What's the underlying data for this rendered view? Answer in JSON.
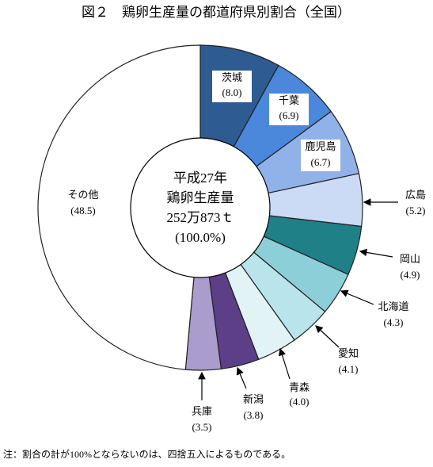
{
  "chart_data": {
    "type": "donut",
    "title": "図２　鶏卵生産量の都道府県別割合（全国）",
    "center_text": [
      "平成27年",
      "鶏卵生産量",
      "252万873ｔ",
      "(100.0%)"
    ],
    "categories": [
      "茨城",
      "千葉",
      "鹿児島",
      "広島",
      "岡山",
      "北海道",
      "愛知",
      "青森",
      "新潟",
      "兵庫",
      "その他"
    ],
    "values": [
      8.0,
      6.9,
      6.7,
      5.2,
      4.9,
      4.3,
      4.1,
      4.0,
      3.8,
      3.5,
      48.5
    ],
    "value_labels": [
      "(8.0)",
      "(6.9)",
      "(6.7)",
      "(5.2)",
      "(4.9)",
      "(4.3)",
      "(4.1)",
      "(4.0)",
      "(3.8)",
      "(3.5)",
      "(48.5)"
    ],
    "colors": [
      "#2e5b92",
      "#4b87da",
      "#90b2e8",
      "#cbdaf5",
      "#1f8088",
      "#8dcfd9",
      "#b9e4eb",
      "#e2f3f6",
      "#5c3f87",
      "#aa9ccd",
      "#ffffff"
    ],
    "note": "注：割合の計が100%とならないのは、四捨五入によるものである。"
  }
}
